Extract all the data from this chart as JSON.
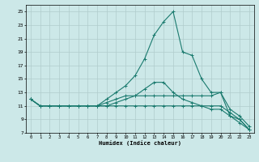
{
  "xlabel": "Humidex (Indice chaleur)",
  "bg_color": "#cce8e8",
  "grid_color": "#b0cccc",
  "line_color": "#1a7a6e",
  "ylim": [
    7,
    26
  ],
  "xlim": [
    -0.5,
    23.5
  ],
  "yticks": [
    7,
    9,
    11,
    13,
    15,
    17,
    19,
    21,
    23,
    25
  ],
  "xticks": [
    0,
    1,
    2,
    3,
    4,
    5,
    6,
    7,
    8,
    9,
    10,
    11,
    12,
    13,
    14,
    15,
    16,
    17,
    18,
    19,
    20,
    21,
    22,
    23
  ],
  "series": [
    {
      "x": [
        0,
        1,
        2,
        3,
        4,
        5,
        6,
        7,
        8,
        9,
        10,
        11,
        12,
        13,
        14,
        15,
        16,
        17,
        18,
        19,
        20,
        21,
        22,
        23
      ],
      "y": [
        12,
        11,
        11,
        11,
        11,
        11,
        11,
        11,
        12,
        13,
        14,
        15.5,
        18,
        21.5,
        23.5,
        25,
        19,
        18.5,
        15,
        13,
        13,
        9.5,
        9,
        7.5
      ]
    },
    {
      "x": [
        0,
        1,
        2,
        3,
        4,
        5,
        6,
        7,
        8,
        9,
        10,
        11,
        12,
        13,
        14,
        15,
        16,
        17,
        18,
        19,
        20,
        21,
        22,
        23
      ],
      "y": [
        12,
        11,
        11,
        11,
        11,
        11,
        11,
        11,
        11.5,
        12,
        12.5,
        12.5,
        12.5,
        12.5,
        12.5,
        12.5,
        12.5,
        12.5,
        12.5,
        12.5,
        13,
        10.5,
        9.5,
        8
      ]
    },
    {
      "x": [
        0,
        1,
        2,
        3,
        4,
        5,
        6,
        7,
        8,
        9,
        10,
        11,
        12,
        13,
        14,
        15,
        16,
        17,
        18,
        19,
        20,
        21,
        22,
        23
      ],
      "y": [
        12,
        11,
        11,
        11,
        11,
        11,
        11,
        11,
        11,
        11,
        11,
        11,
        11,
        11,
        11,
        11,
        11,
        11,
        11,
        11,
        11,
        10,
        9,
        7.5
      ]
    },
    {
      "x": [
        0,
        1,
        2,
        3,
        4,
        5,
        6,
        7,
        8,
        9,
        10,
        11,
        12,
        13,
        14,
        15,
        16,
        17,
        18,
        19,
        20,
        21,
        22,
        23
      ],
      "y": [
        12,
        11,
        11,
        11,
        11,
        11,
        11,
        11,
        11,
        11.5,
        12,
        12.5,
        13.5,
        14.5,
        14.5,
        13,
        12,
        11.5,
        11,
        10.5,
        10.5,
        9.5,
        8.5,
        7.5
      ]
    }
  ]
}
